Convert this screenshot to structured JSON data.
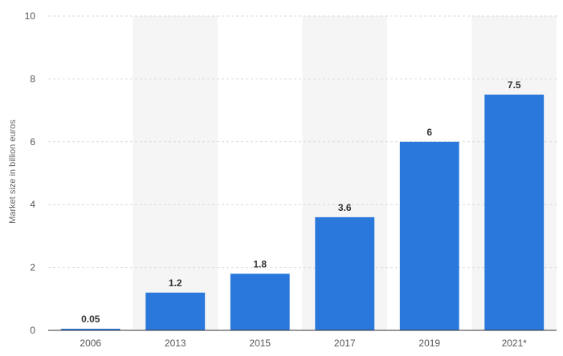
{
  "chart_data": {
    "type": "bar",
    "title": "",
    "xlabel": "",
    "ylabel": "Market size in billion euros",
    "categories": [
      "2006",
      "2013",
      "2015",
      "2017",
      "2019",
      "2021*"
    ],
    "values": [
      0.05,
      1.2,
      1.8,
      3.6,
      6,
      7.5
    ],
    "value_labels": [
      "0.05",
      "1.2",
      "1.8",
      "3.6",
      "6",
      "7.5"
    ],
    "ylim": [
      0,
      10
    ],
    "yticks": [
      0,
      2,
      4,
      6,
      8,
      10
    ],
    "grid": true,
    "grid_style": "dashed",
    "alternating_column_shading": true,
    "legend": "none",
    "colors": {
      "bar": "#2b78dc",
      "grid": "#d9d9d9",
      "band": "#f5f5f5",
      "axis": "#333333"
    }
  }
}
